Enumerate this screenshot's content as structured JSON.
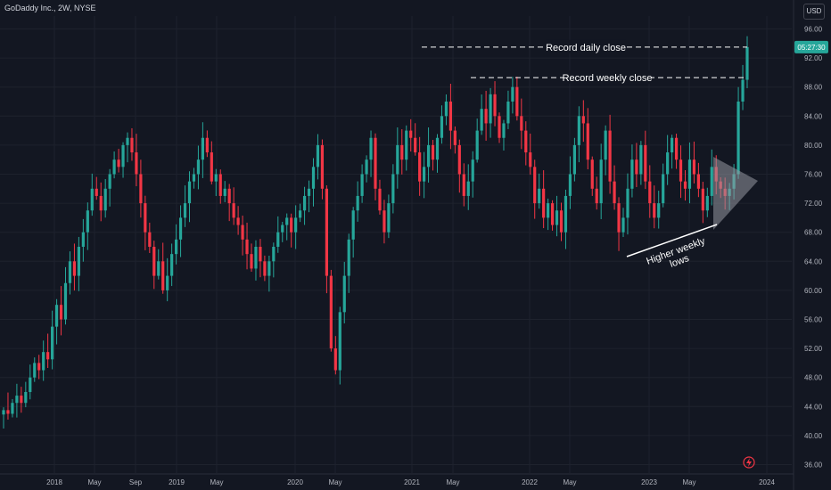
{
  "header": {
    "symbol": "GoDaddy Inc., 2W, NYSE",
    "currency": "USD"
  },
  "price_tag": {
    "label": "05:27:30",
    "value": 93.5,
    "color": "#26a69a"
  },
  "colors": {
    "up": "#26a69a",
    "down": "#f23645",
    "background": "#131722",
    "axis_text": "#b2b5be",
    "annotation": "#ffffff",
    "triangle": "#9598a1"
  },
  "chart_data": {
    "type": "candlestick",
    "title": "",
    "xlabel": "",
    "ylabel": "",
    "ylim": [
      35,
      98
    ],
    "x_ticks": [
      "2018",
      "May",
      "Sep",
      "2019",
      "May",
      "2020",
      "May",
      "2021",
      "May",
      "2022",
      "May",
      "2023",
      "May",
      "2024"
    ],
    "y_ticks": [
      "36.00",
      "40.00",
      "44.00",
      "48.00",
      "52.00",
      "56.00",
      "60.00",
      "64.00",
      "68.00",
      "72.00",
      "76.00",
      "80.00",
      "84.00",
      "88.00",
      "92.00",
      "96.00"
    ],
    "close_series": [
      43.5,
      43,
      44.5,
      45.5,
      44.5,
      46,
      48,
      50,
      49,
      51.5,
      50.5,
      55,
      58,
      56,
      61,
      64,
      62,
      66,
      68,
      71,
      74,
      73,
      71,
      74,
      76,
      78,
      77,
      80,
      81,
      79,
      76,
      72,
      68,
      66,
      62,
      64,
      60,
      62,
      65,
      67,
      70,
      72,
      75,
      76,
      78,
      81,
      79,
      75,
      76,
      73,
      74,
      72,
      70,
      69,
      67,
      65,
      63,
      66,
      64,
      62,
      64,
      66,
      68,
      69,
      70,
      68,
      70,
      71,
      73,
      74,
      77,
      80,
      74,
      62,
      52,
      49,
      57,
      62,
      67,
      71,
      73,
      76,
      78,
      81,
      74,
      71,
      68,
      72,
      76,
      80,
      78,
      82,
      81,
      79,
      75,
      77,
      80,
      78,
      81,
      84,
      86,
      82,
      80,
      76,
      73,
      75,
      78,
      82,
      85,
      83,
      87,
      84,
      81,
      83,
      86,
      88,
      84,
      82,
      79,
      77,
      72,
      74,
      70,
      72,
      69,
      71,
      68,
      73,
      76,
      80,
      84,
      83,
      78,
      74,
      72,
      78,
      82,
      75,
      72,
      68,
      70,
      74,
      78,
      76,
      80,
      75,
      72,
      70,
      72,
      76,
      79,
      81,
      78,
      75,
      74,
      78,
      76,
      74,
      71,
      73,
      77,
      75,
      74,
      73,
      74,
      76,
      86,
      89,
      93.5
    ],
    "annotations": [
      {
        "text": "Record daily close",
        "value": 93.5
      },
      {
        "text": "Record weekly close",
        "value": 89.3
      },
      {
        "text": "Higher weekly lows",
        "lines": [
          "Higher weekly",
          "lows"
        ]
      }
    ]
  }
}
